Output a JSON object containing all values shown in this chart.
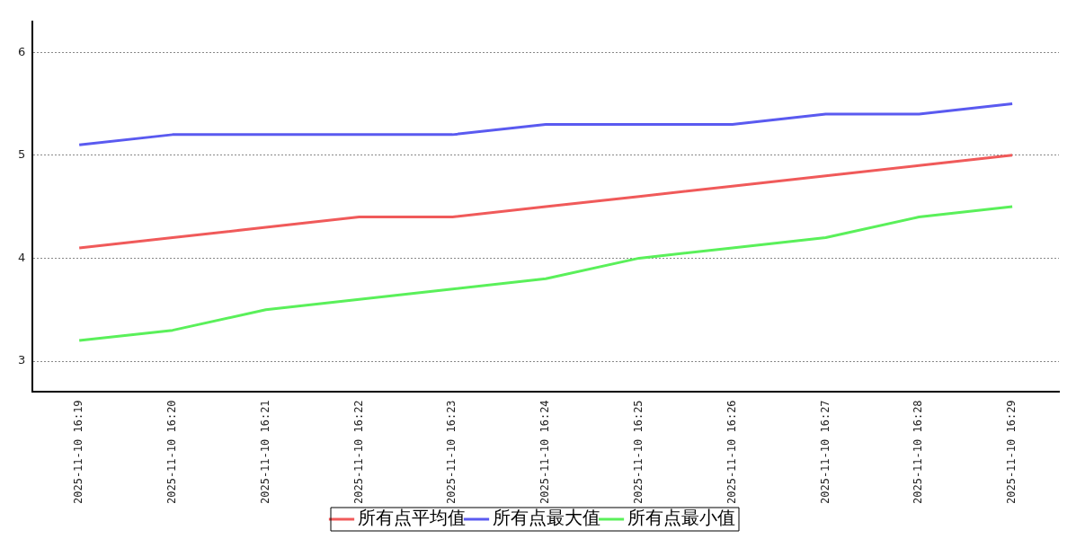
{
  "chart_data": {
    "type": "line",
    "categories": [
      "2025-11-10 16:19",
      "2025-11-10 16:20",
      "2025-11-10 16:21",
      "2025-11-10 16:22",
      "2025-11-10 16:23",
      "2025-11-10 16:24",
      "2025-11-10 16:25",
      "2025-11-10 16:26",
      "2025-11-10 16:27",
      "2025-11-10 16:28",
      "2025-11-10 16:29"
    ],
    "series": [
      {
        "name": "所有点平均值",
        "color": "#f05a5a",
        "values": [
          4.1,
          4.2,
          4.3,
          4.4,
          4.4,
          4.5,
          4.6,
          4.7,
          4.8,
          4.9,
          5.0
        ]
      },
      {
        "name": "所有点最大值",
        "color": "#5a5af0",
        "values": [
          5.1,
          5.2,
          5.2,
          5.2,
          5.2,
          5.3,
          5.3,
          5.3,
          5.4,
          5.4,
          5.5
        ]
      },
      {
        "name": "所有点最小值",
        "color": "#5af05a",
        "values": [
          3.2,
          3.3,
          3.5,
          3.6,
          3.7,
          3.8,
          4.0,
          4.1,
          4.2,
          4.4,
          4.5
        ]
      }
    ],
    "ylim": [
      2.7,
      6.3
    ],
    "yticks": [
      3,
      4,
      5,
      6
    ],
    "grid": "y",
    "legend": "bottom",
    "marker": "none",
    "line_style": "solid"
  }
}
